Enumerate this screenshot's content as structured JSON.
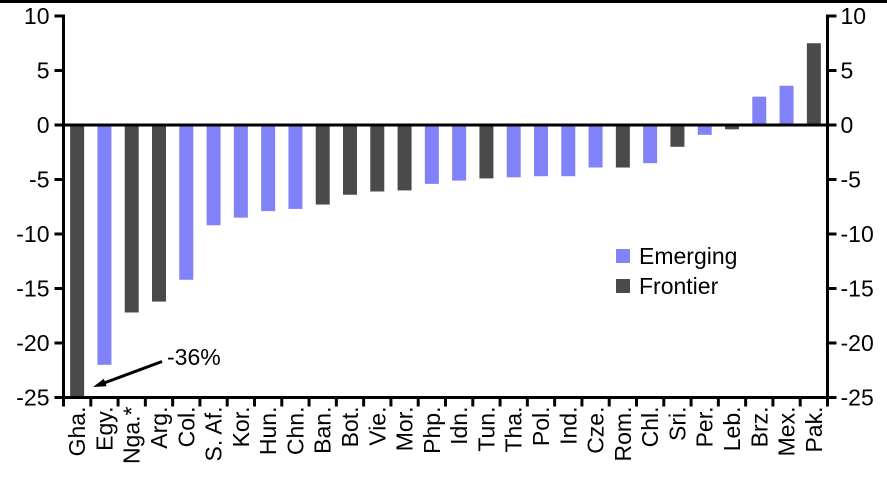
{
  "chart_data": {
    "type": "bar",
    "title": "",
    "xlabel": "",
    "ylabel": "",
    "categories": [
      "Gha.",
      "Egy.",
      "Nga.*",
      "Arg.",
      "Col.",
      "S. Af.",
      "Kor.",
      "Hun.",
      "Chn.",
      "Ban.",
      "Bot.",
      "Vie.",
      "Mor.",
      "Php.",
      "Idn.",
      "Tun.",
      "Tha.",
      "Pol.",
      "Ind.",
      "Cze.",
      "Rom.",
      "Chl.",
      "Sri.",
      "Per.",
      "Leb.",
      "Brz.",
      "Mex.",
      "Pak."
    ],
    "values": [
      -36,
      -22,
      -17.2,
      -16.2,
      -14.2,
      -9.2,
      -8.5,
      -7.9,
      -7.7,
      -7.3,
      -6.4,
      -6.1,
      -6.0,
      -5.4,
      -5.1,
      -4.9,
      -4.8,
      -4.7,
      -4.7,
      -3.9,
      -3.9,
      -3.5,
      -2.0,
      -0.9,
      -0.4,
      2.6,
      3.6,
      7.5
    ],
    "groups": [
      "Frontier",
      "Emerging",
      "Frontier",
      "Frontier",
      "Emerging",
      "Emerging",
      "Emerging",
      "Emerging",
      "Emerging",
      "Frontier",
      "Frontier",
      "Frontier",
      "Frontier",
      "Emerging",
      "Emerging",
      "Frontier",
      "Emerging",
      "Emerging",
      "Emerging",
      "Emerging",
      "Frontier",
      "Emerging",
      "Frontier",
      "Emerging",
      "Frontier",
      "Emerging",
      "Emerging",
      "Frontier"
    ],
    "ylim": [
      -25,
      10
    ],
    "yticks": [
      10,
      5,
      0,
      -5,
      -10,
      -15,
      -20,
      -25
    ],
    "bar_clamp_min": -25,
    "grid": false,
    "dual_axis": true,
    "legend_position": "right-middle",
    "legend": [
      {
        "label": "Emerging",
        "color": "#8181F8"
      },
      {
        "label": "Frontier",
        "color": "#4A4A4A"
      }
    ],
    "annotation": {
      "text": "-36%",
      "target_category": "Gha."
    }
  },
  "colors": {
    "emerging": "#8181F8",
    "frontier": "#4A4A4A",
    "axis": "#000000",
    "background": "#FFFFFF"
  }
}
